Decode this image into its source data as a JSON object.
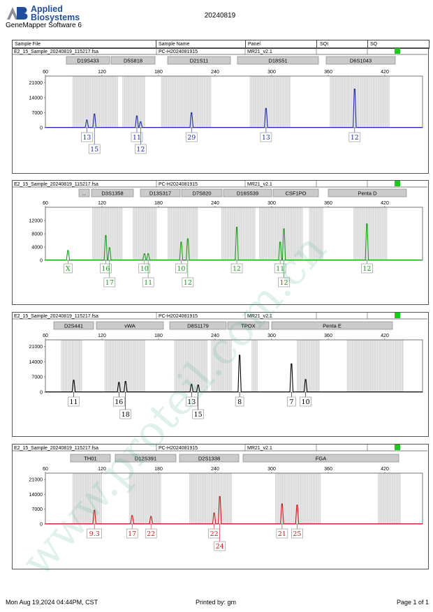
{
  "header": {
    "brand_line1": "Applied",
    "brand_line2": "Biosystems",
    "software": "GeneMapper Software 6",
    "run_date": "20240819",
    "columns": [
      "Sample File",
      "Sample Name",
      "Panel",
      "SQI",
      "SQ"
    ]
  },
  "sample_row": {
    "file": "E2_15_Sample_20240819_115217.fsa",
    "name": "PC-H2024081915",
    "panel": "MR21_v2.1",
    "sq_color": "#1ec81e"
  },
  "colors": {
    "blue": "#1f2fa8",
    "green": "#1e9a1e",
    "black": "#000000",
    "red": "#c81e1e",
    "bin_gray": "#cfcfcf",
    "grid_border": "#555555",
    "watermark": "#3aa87a"
  },
  "watermark": "www.proteil.com.cn",
  "footer": {
    "left": "Mon Aug 19,2024 04:44PM, CST",
    "center": "Printed by: gm",
    "right": "Page 1 of 1"
  },
  "chart_data": [
    {
      "type": "line",
      "dye": "blue",
      "xlim": [
        60,
        460
      ],
      "x_ticks": [
        60,
        120,
        180,
        240,
        300,
        360,
        420
      ],
      "ylim": [
        0,
        24000
      ],
      "y_ticks": [
        0,
        7000,
        14000,
        21000
      ],
      "markers": [
        "D19S433",
        "D5S818",
        "D21S11",
        "D18S51",
        "D6S1043"
      ],
      "peaks": [
        {
          "x": 104,
          "height": 3600,
          "allele": "13"
        },
        {
          "x": 112,
          "height": 6400,
          "allele": "15"
        },
        {
          "x": 157,
          "height": 5500,
          "allele": "11"
        },
        {
          "x": 161,
          "height": 2800,
          "allele": "12"
        },
        {
          "x": 215,
          "height": 7000,
          "allele": "29"
        },
        {
          "x": 294,
          "height": 9000,
          "allele": "13"
        },
        {
          "x": 388,
          "height": 18000,
          "allele": "12"
        }
      ]
    },
    {
      "type": "line",
      "dye": "green",
      "xlim": [
        60,
        460
      ],
      "x_ticks": [
        60,
        120,
        180,
        240,
        300,
        360,
        420
      ],
      "ylim": [
        0,
        16000
      ],
      "y_ticks": [
        0,
        4000,
        8000,
        12000
      ],
      "markers": [
        "...",
        "D3S1358",
        "D13S317",
        "D7S820",
        "D16S539",
        "CSF1PO",
        "Penta D"
      ],
      "peaks": [
        {
          "x": 84,
          "height": 3000,
          "allele": "X"
        },
        {
          "x": 124,
          "height": 7500,
          "allele": "16"
        },
        {
          "x": 128,
          "height": 3800,
          "allele": "17"
        },
        {
          "x": 165,
          "height": 2000,
          "allele": "10"
        },
        {
          "x": 169,
          "height": 2000,
          "allele": "11"
        },
        {
          "x": 204,
          "height": 5500,
          "allele": "10"
        },
        {
          "x": 211,
          "height": 6500,
          "allele": "12"
        },
        {
          "x": 263,
          "height": 10000,
          "allele": "12"
        },
        {
          "x": 309,
          "height": 5500,
          "allele": "11"
        },
        {
          "x": 313,
          "height": 9500,
          "allele": "12"
        },
        {
          "x": 401,
          "height": 11000,
          "allele": "12"
        }
      ]
    },
    {
      "type": "line",
      "dye": "black",
      "xlim": [
        60,
        460
      ],
      "x_ticks": [
        60,
        120,
        180,
        240,
        300,
        360,
        420
      ],
      "ylim": [
        0,
        24000
      ],
      "y_ticks": [
        0,
        7000,
        14000,
        21000
      ],
      "markers": [
        "D2S441",
        "vWA",
        "D8S1179",
        "TPOX",
        "Penta E"
      ],
      "peaks": [
        {
          "x": 90,
          "height": 5500,
          "allele": "11"
        },
        {
          "x": 138,
          "height": 4500,
          "allele": "16"
        },
        {
          "x": 145,
          "height": 4900,
          "allele": "18"
        },
        {
          "x": 215,
          "height": 3600,
          "allele": "13"
        },
        {
          "x": 222,
          "height": 3300,
          "allele": "15"
        },
        {
          "x": 266,
          "height": 17000,
          "allele": "8"
        },
        {
          "x": 321,
          "height": 13000,
          "allele": "7"
        },
        {
          "x": 336,
          "height": 5800,
          "allele": "10"
        }
      ]
    },
    {
      "type": "line",
      "dye": "red",
      "xlim": [
        60,
        460
      ],
      "x_ticks": [
        60,
        120,
        180,
        240,
        300,
        360,
        420
      ],
      "ylim": [
        0,
        24000
      ],
      "y_ticks": [
        0,
        7000,
        14000,
        21000
      ],
      "markers": [
        "TH01",
        "D12S391",
        "D2S1338",
        "FGA"
      ],
      "peaks": [
        {
          "x": 112,
          "height": 6500,
          "allele": "9.3"
        },
        {
          "x": 152,
          "height": 4000,
          "allele": "17"
        },
        {
          "x": 172,
          "height": 3600,
          "allele": "22"
        },
        {
          "x": 239,
          "height": 5200,
          "allele": "22"
        },
        {
          "x": 245,
          "height": 13000,
          "allele": "24"
        },
        {
          "x": 311,
          "height": 9500,
          "allele": "21"
        },
        {
          "x": 327,
          "height": 9000,
          "allele": "25"
        }
      ]
    }
  ]
}
